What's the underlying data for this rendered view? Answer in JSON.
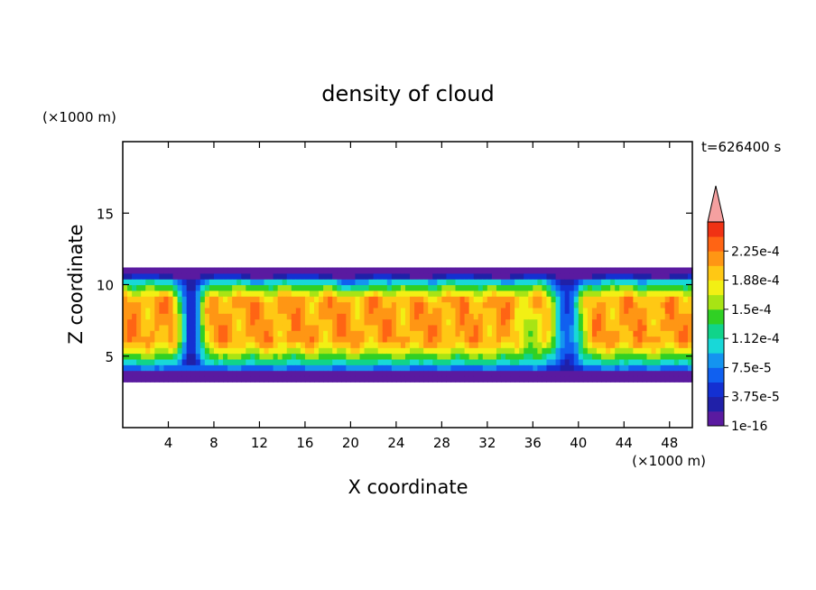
{
  "chart_data": {
    "type": "heatmap",
    "title": "density of cloud",
    "xlabel": "X coordinate",
    "ylabel": "Z coordinate",
    "x_unit": "(×1000 m)",
    "y_unit": "(×1000 m)",
    "time_label": "t=626400 s",
    "xlim": [
      0,
      50
    ],
    "ylim": [
      0,
      20
    ],
    "x_ticks": [
      4,
      8,
      12,
      16,
      20,
      24,
      28,
      32,
      36,
      40,
      44,
      48
    ],
    "y_ticks": [
      5,
      10,
      15
    ],
    "colorbar": {
      "levels": [
        1e-16,
        1.875e-05,
        3.75e-05,
        5.625e-05,
        7.5e-05,
        9.375e-05,
        0.0001125,
        0.00013125,
        0.00015,
        0.00016875,
        0.0001875,
        0.00020625,
        0.000225,
        0.00024375
      ],
      "tick_labels": [
        "1e-16",
        "3.75e-5",
        "7.5e-5",
        "1.12e-4",
        "1.5e-4",
        "1.88e-4",
        "2.25e-4"
      ],
      "colors": [
        "#5a1aa0",
        "#2020a8",
        "#1430d2",
        "#1060f0",
        "#1494f0",
        "#18d8d8",
        "#10d48a",
        "#30d024",
        "#a8e414",
        "#f2f014",
        "#ffc814",
        "#ff9614",
        "#ff6414",
        "#f03214"
      ],
      "extend_color": "#f5a0a0"
    },
    "cloud_layer": {
      "z_bottom": 3.4,
      "z_top": 11.2,
      "core_density": 0.00021
    }
  }
}
